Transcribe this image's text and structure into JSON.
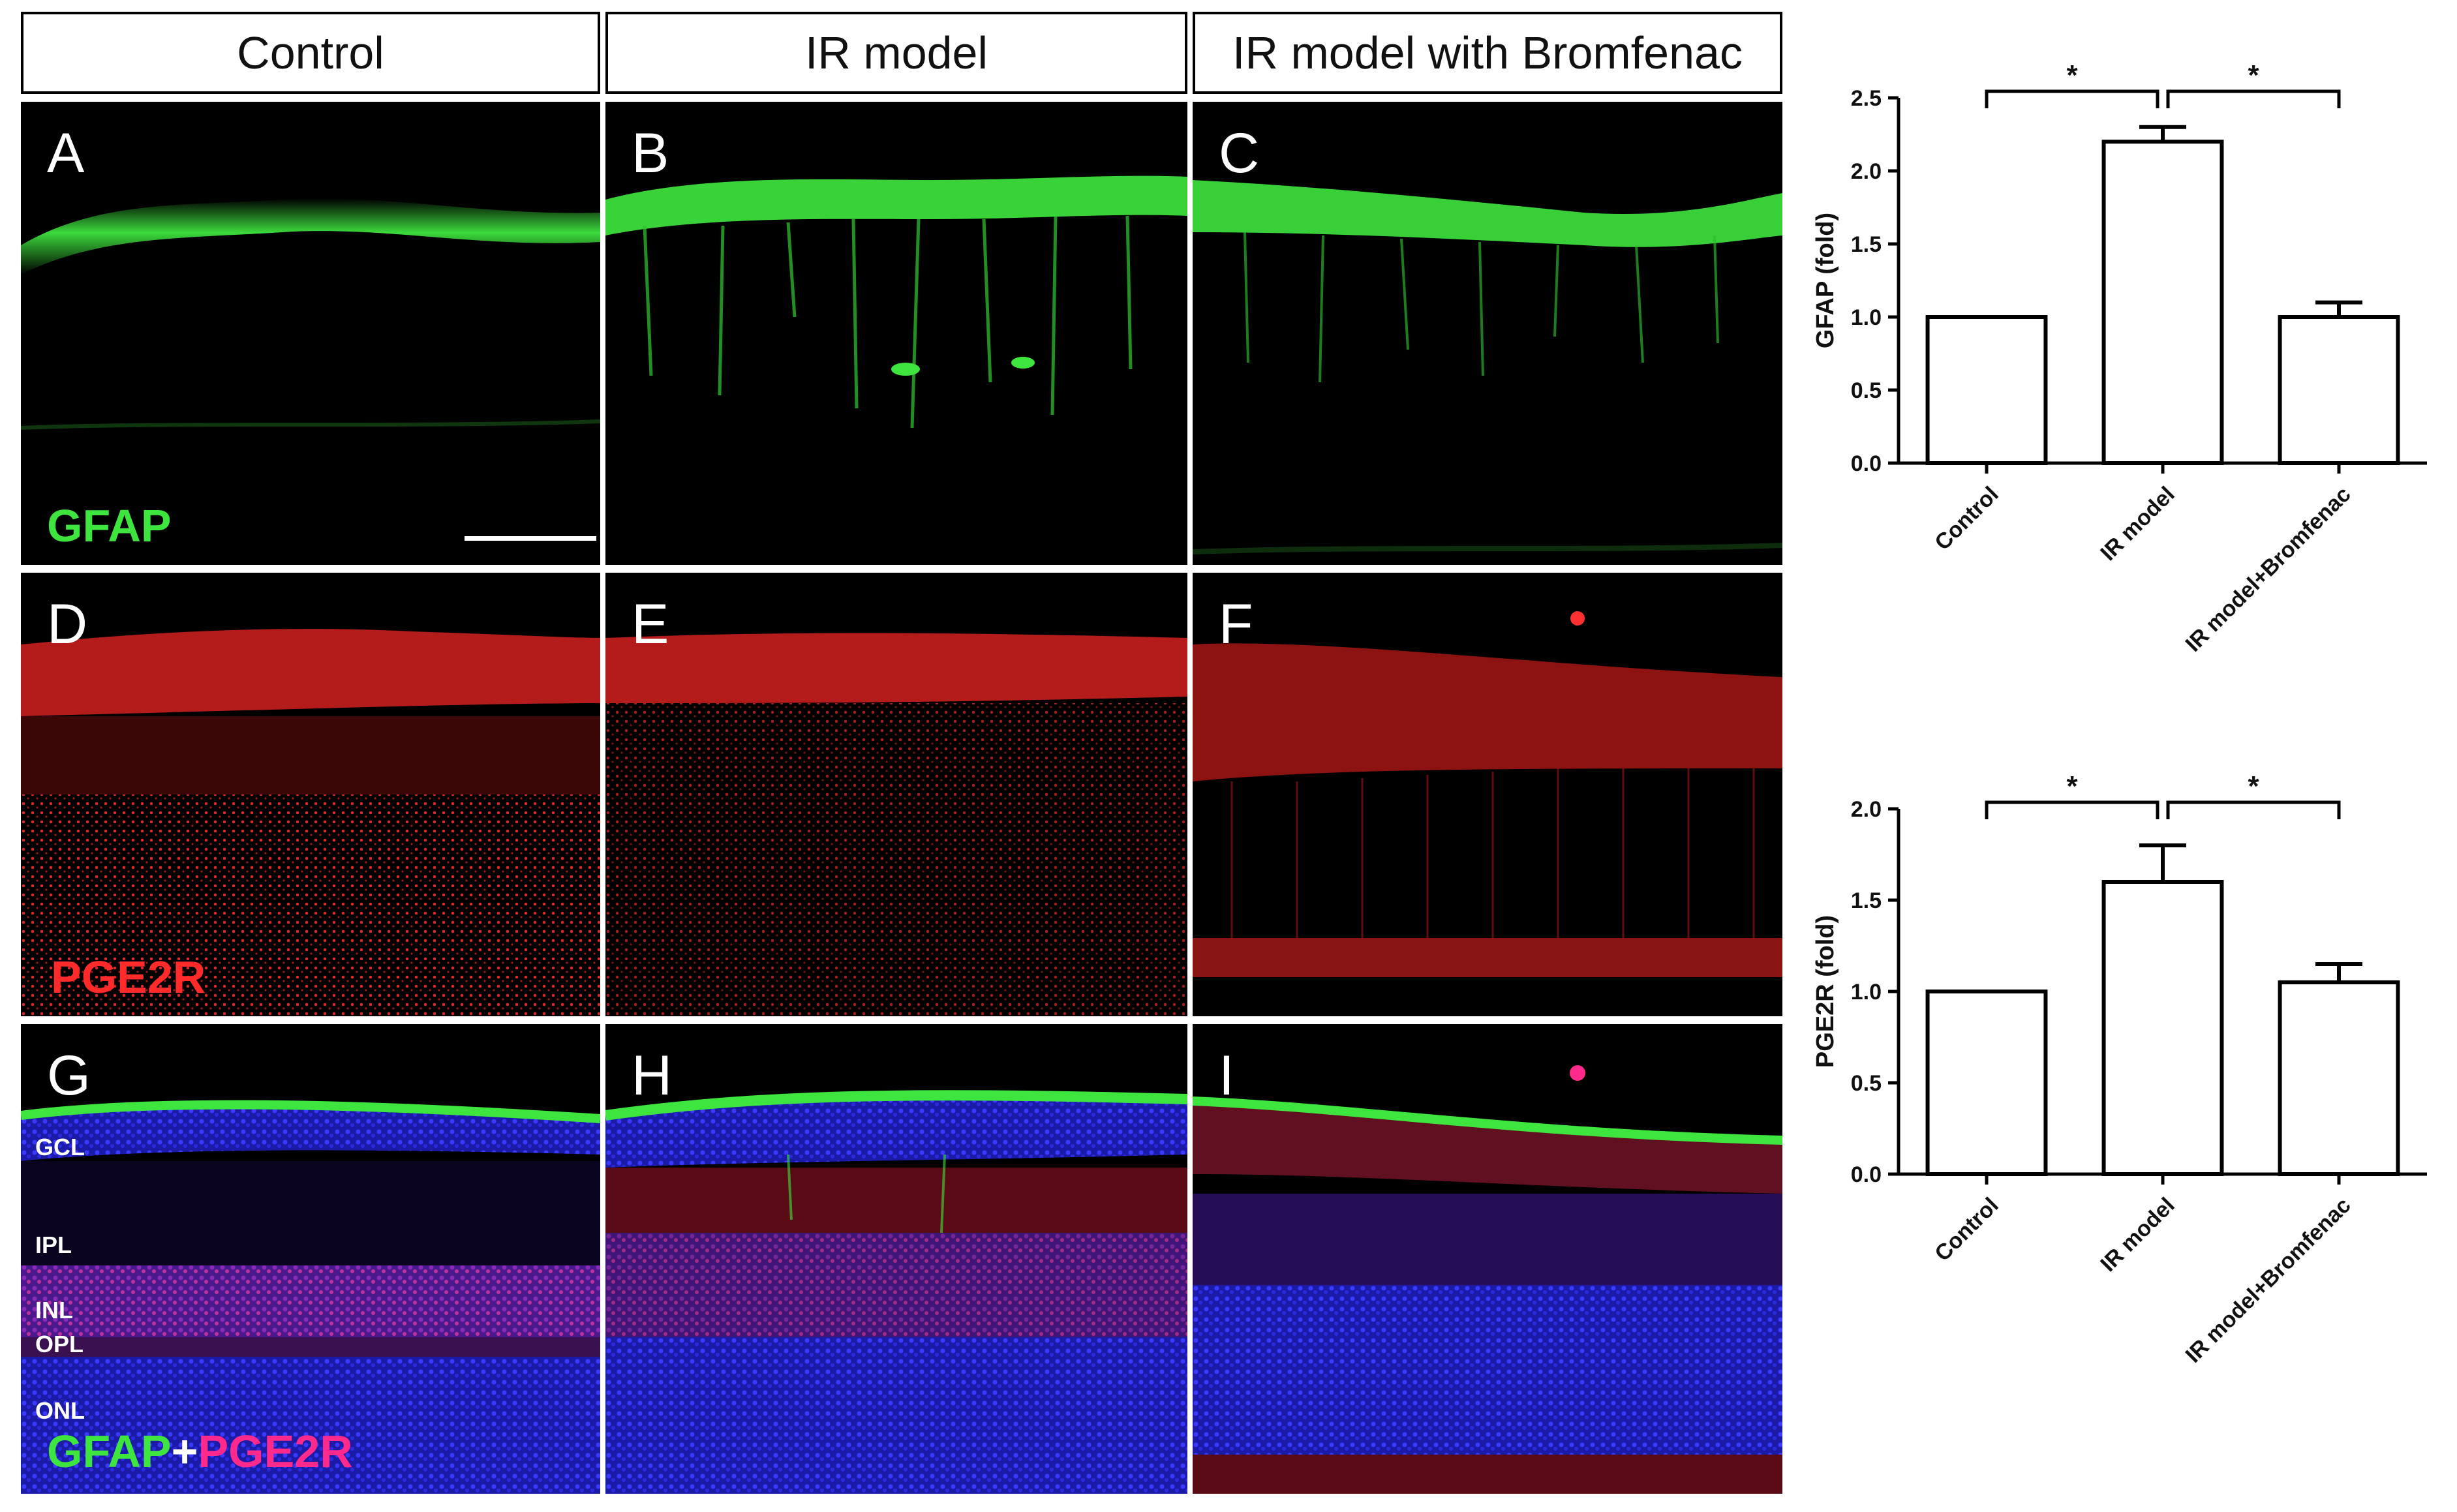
{
  "headers": {
    "control": "Control",
    "ir": "IR model",
    "ir_brom": "IR model with Bromfenac"
  },
  "panels": {
    "A": "A",
    "B": "B",
    "C": "C",
    "D": "D",
    "E": "E",
    "F": "F",
    "G": "G",
    "H": "H",
    "I": "I"
  },
  "stains": {
    "gfap": "GFAP",
    "pge2r": "PGE2R",
    "plus": "+"
  },
  "layers": {
    "gcl": "GCL",
    "ipl": "IPL",
    "inl": "INL",
    "opl": "OPL",
    "onl": "ONL"
  },
  "colors": {
    "green": "#3ee53e",
    "red": "#ff2a2a",
    "pink": "#ff2a8c",
    "blue": "#2b2bff"
  },
  "chart_data": [
    {
      "type": "bar",
      "ylabel": "GFAP (fold)",
      "categories": [
        "Control",
        "IR model",
        "IR model+Bromfenac"
      ],
      "values": [
        1.0,
        2.2,
        1.0
      ],
      "errors": [
        0,
        0.1,
        0.1
      ],
      "ylim": [
        0,
        2.5
      ],
      "yticks": [
        "0.0",
        "0.5",
        "1.0",
        "1.5",
        "2.0",
        "2.5"
      ],
      "significance": [
        {
          "from": 0,
          "to": 1,
          "label": "*"
        },
        {
          "from": 1,
          "to": 2,
          "label": "*"
        }
      ]
    },
    {
      "type": "bar",
      "ylabel": "PGE2R (fold)",
      "categories": [
        "Control",
        "IR model",
        "IR model+Bromfenac"
      ],
      "values": [
        1.0,
        1.6,
        1.05
      ],
      "errors": [
        0,
        0.2,
        0.1
      ],
      "ylim": [
        0,
        2.0
      ],
      "yticks": [
        "0.0",
        "0.5",
        "1.0",
        "1.5",
        "2.0"
      ],
      "significance": [
        {
          "from": 0,
          "to": 1,
          "label": "*"
        },
        {
          "from": 1,
          "to": 2,
          "label": "*"
        }
      ]
    }
  ]
}
